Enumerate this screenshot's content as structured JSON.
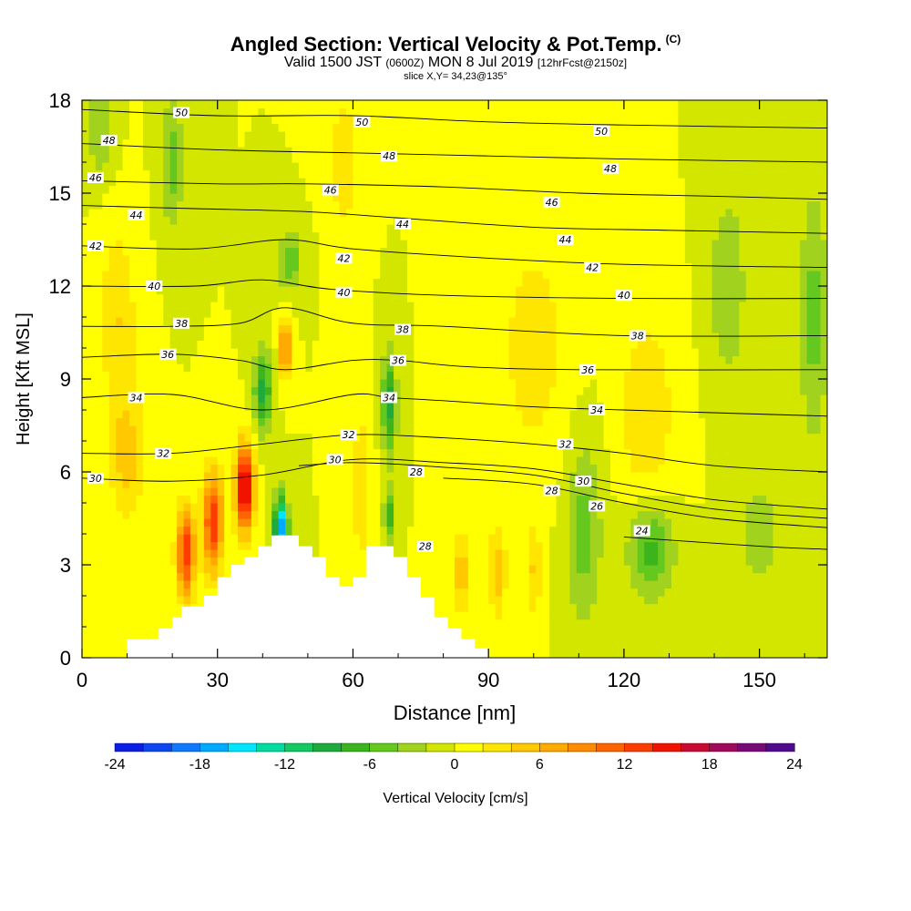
{
  "title": {
    "main": "Angled Section: Vertical Velocity & Pot.Temp.",
    "units": "(C)",
    "valid_prefix": "Valid 1500 JST",
    "valid_z": "(0600Z)",
    "valid_date": "MON 8 Jul 2019",
    "forecast": "[12hrFcst@2150z]",
    "slice": "slice X,Y= 34,23@135°"
  },
  "chart_data": {
    "type": "heatmap",
    "xlabel": "Distance [nm]",
    "ylabel": "Height [Kft MSL]",
    "xlim": [
      0,
      165
    ],
    "ylim": [
      0,
      18
    ],
    "xticks": [
      0,
      30,
      60,
      90,
      120,
      150
    ],
    "yticks": [
      0,
      3,
      6,
      9,
      12,
      15,
      18
    ],
    "colorbar": {
      "label": "Vertical Velocity [cm/s]",
      "range": [
        -24,
        24
      ],
      "ticks": [
        -24,
        -18,
        -12,
        -6,
        0,
        6,
        12,
        18,
        24
      ],
      "colors": [
        "#0a1ee6",
        "#0f46f0",
        "#0f78ff",
        "#00aaff",
        "#00e6ff",
        "#00dca0",
        "#14c864",
        "#1eaa3c",
        "#3cb41e",
        "#64c81e",
        "#a0d21e",
        "#d2e600",
        "#ffff00",
        "#ffe600",
        "#ffc800",
        "#ffaa00",
        "#ff8c00",
        "#ff6400",
        "#ff3c00",
        "#f01400",
        "#c80a32",
        "#a00a5a",
        "#780a78",
        "#500a8c"
      ]
    },
    "terrain": [
      [
        10,
        0.6
      ],
      [
        14,
        0.6
      ],
      [
        14,
        0.6
      ],
      [
        17,
        0.6
      ],
      [
        17,
        0.95
      ],
      [
        20,
        0.95
      ],
      [
        20,
        1.3
      ],
      [
        22,
        1.3
      ],
      [
        22,
        1.65
      ],
      [
        27,
        1.65
      ],
      [
        27,
        2.0
      ],
      [
        30,
        2.0
      ],
      [
        30,
        2.6
      ],
      [
        33,
        2.6
      ],
      [
        33,
        3.0
      ],
      [
        36,
        3.0
      ],
      [
        36,
        3.25
      ],
      [
        39,
        3.25
      ],
      [
        39,
        3.6
      ],
      [
        42,
        3.6
      ],
      [
        42,
        3.95
      ],
      [
        48,
        3.95
      ],
      [
        48,
        3.6
      ],
      [
        51,
        3.6
      ],
      [
        51,
        3.25
      ],
      [
        54,
        3.25
      ],
      [
        54,
        2.6
      ],
      [
        57,
        2.6
      ],
      [
        57,
        2.3
      ],
      [
        60,
        2.3
      ],
      [
        60,
        2.6
      ],
      [
        63,
        2.6
      ],
      [
        63,
        3.6
      ],
      [
        69,
        3.6
      ],
      [
        69,
        3.25
      ],
      [
        72,
        3.25
      ],
      [
        72,
        2.6
      ],
      [
        75,
        2.6
      ],
      [
        75,
        1.95
      ],
      [
        78,
        1.95
      ],
      [
        78,
        1.3
      ],
      [
        81,
        1.3
      ],
      [
        81,
        0.95
      ],
      [
        84,
        0.95
      ],
      [
        84,
        0.6
      ],
      [
        87,
        0.6
      ],
      [
        87,
        0.3
      ],
      [
        90,
        0.3
      ]
    ],
    "velocity_features": [
      {
        "x": 36,
        "y": 5.5,
        "w": 18,
        "sx": 2.0,
        "sy": 1.4
      },
      {
        "x": 29,
        "y": 4.4,
        "w": 14,
        "sx": 2.2,
        "sy": 1.6
      },
      {
        "x": 23,
        "y": 3.4,
        "w": 14,
        "sx": 2.0,
        "sy": 1.4
      },
      {
        "x": 45,
        "y": 10.0,
        "w": 12,
        "sx": 1.2,
        "sy": 0.9
      },
      {
        "x": 44,
        "y": 4.2,
        "w": -18,
        "sx": 1.5,
        "sy": 1.0
      },
      {
        "x": 40,
        "y": 8.6,
        "w": -9,
        "sx": 2.0,
        "sy": 1.3
      },
      {
        "x": 68,
        "y": 8.2,
        "w": -9,
        "sx": 1.6,
        "sy": 1.6
      },
      {
        "x": 68,
        "y": 4.6,
        "w": -7,
        "sx": 1.2,
        "sy": 0.9
      },
      {
        "x": 46,
        "y": 12.8,
        "w": -6,
        "sx": 2.5,
        "sy": 0.9
      },
      {
        "x": 126,
        "y": 3.5,
        "w": -7,
        "sx": 5.0,
        "sy": 1.5
      },
      {
        "x": 111,
        "y": 4.0,
        "w": -5,
        "sx": 4.0,
        "sy": 3.0
      },
      {
        "x": 10,
        "y": 6.5,
        "w": 5,
        "sx": 4.0,
        "sy": 2.0
      },
      {
        "x": 62,
        "y": 5.5,
        "w": 4,
        "sx": 2.0,
        "sy": 2.5
      },
      {
        "x": 84,
        "y": 2.8,
        "w": 5,
        "sx": 2.0,
        "sy": 1.5
      },
      {
        "x": 92,
        "y": 2.8,
        "w": 5,
        "sx": 2.0,
        "sy": 1.5
      },
      {
        "x": 100,
        "y": 2.8,
        "w": 4,
        "sx": 2.0,
        "sy": 1.5
      },
      {
        "x": 58,
        "y": 16,
        "w": 4,
        "sx": 3.0,
        "sy": 2.0
      },
      {
        "x": 8,
        "y": 11,
        "w": 4,
        "sx": 4.0,
        "sy": 3.0
      },
      {
        "x": 125,
        "y": 8,
        "w": 4,
        "sx": 6.0,
        "sy": 3.0
      },
      {
        "x": 100,
        "y": 10,
        "w": 3,
        "sx": 8.0,
        "sy": 4.0
      },
      {
        "x": 4,
        "y": 17,
        "w": -4,
        "sx": 3.0,
        "sy": 1.5
      },
      {
        "x": 20,
        "y": 16,
        "w": -5,
        "sx": 2.5,
        "sy": 2.0
      },
      {
        "x": 143,
        "y": 12,
        "w": -4,
        "sx": 4.0,
        "sy": 3.0
      },
      {
        "x": 162,
        "y": 11,
        "w": -5,
        "sx": 3.0,
        "sy": 4.0
      },
      {
        "x": 150,
        "y": 4,
        "w": -3,
        "sx": 5.0,
        "sy": 2.0
      }
    ],
    "theta_lines": [
      {
        "label": "24",
        "pts": [
          [
            120,
            3.9
          ],
          [
            150,
            3.6
          ],
          [
            165,
            3.5
          ]
        ]
      },
      {
        "label": "26",
        "pts": [
          [
            80,
            5.8
          ],
          [
            100,
            5.6
          ],
          [
            120,
            5.0
          ],
          [
            140,
            4.5
          ],
          [
            165,
            4.2
          ]
        ]
      },
      {
        "label": "28",
        "pts": [
          [
            48,
            6.2
          ],
          [
            60,
            6.3
          ],
          [
            75,
            6.2
          ],
          [
            100,
            5.9
          ],
          [
            120,
            5.3
          ],
          [
            140,
            4.8
          ],
          [
            165,
            4.5
          ]
        ]
      },
      {
        "label": "30",
        "pts": [
          [
            0,
            5.8
          ],
          [
            20,
            5.7
          ],
          [
            40,
            5.9
          ],
          [
            60,
            6.4
          ],
          [
            80,
            6.3
          ],
          [
            100,
            6.1
          ],
          [
            120,
            5.6
          ],
          [
            140,
            5.1
          ],
          [
            165,
            4.8
          ]
        ]
      },
      {
        "label": "32",
        "pts": [
          [
            0,
            6.6
          ],
          [
            20,
            6.6
          ],
          [
            40,
            6.9
          ],
          [
            60,
            7.2
          ],
          [
            80,
            7.1
          ],
          [
            100,
            6.9
          ],
          [
            120,
            6.6
          ],
          [
            140,
            6.2
          ],
          [
            165,
            6.0
          ]
        ]
      },
      {
        "label": "34",
        "pts": [
          [
            0,
            8.4
          ],
          [
            20,
            8.5
          ],
          [
            40,
            8.0
          ],
          [
            60,
            8.5
          ],
          [
            68,
            8.4
          ],
          [
            80,
            8.3
          ],
          [
            100,
            8.1
          ],
          [
            120,
            8.0
          ],
          [
            165,
            7.8
          ]
        ]
      },
      {
        "label": "36",
        "pts": [
          [
            0,
            9.7
          ],
          [
            20,
            9.8
          ],
          [
            35,
            9.6
          ],
          [
            45,
            9.3
          ],
          [
            60,
            9.6
          ],
          [
            70,
            9.6
          ],
          [
            85,
            9.4
          ],
          [
            110,
            9.3
          ],
          [
            165,
            9.3
          ]
        ]
      },
      {
        "label": "38",
        "pts": [
          [
            0,
            10.7
          ],
          [
            20,
            10.7
          ],
          [
            35,
            10.8
          ],
          [
            45,
            11.3
          ],
          [
            60,
            10.8
          ],
          [
            80,
            10.7
          ],
          [
            120,
            10.4
          ],
          [
            165,
            10.4
          ]
        ]
      },
      {
        "label": "40",
        "pts": [
          [
            0,
            12.0
          ],
          [
            25,
            12.0
          ],
          [
            40,
            12.2
          ],
          [
            55,
            11.9
          ],
          [
            80,
            11.7
          ],
          [
            120,
            11.6
          ],
          [
            165,
            11.6
          ]
        ]
      },
      {
        "label": "42",
        "pts": [
          [
            0,
            13.3
          ],
          [
            25,
            13.2
          ],
          [
            45,
            13.5
          ],
          [
            60,
            13.2
          ],
          [
            90,
            12.9
          ],
          [
            120,
            12.7
          ],
          [
            165,
            12.6
          ]
        ]
      },
      {
        "label": "44",
        "pts": [
          [
            0,
            14.6
          ],
          [
            25,
            14.5
          ],
          [
            50,
            14.4
          ],
          [
            70,
            14.2
          ],
          [
            100,
            13.9
          ],
          [
            130,
            13.8
          ],
          [
            165,
            13.7
          ]
        ]
      },
      {
        "label": "46",
        "pts": [
          [
            0,
            15.4
          ],
          [
            30,
            15.3
          ],
          [
            50,
            15.3
          ],
          [
            80,
            15.2
          ],
          [
            110,
            15.0
          ],
          [
            140,
            14.9
          ],
          [
            165,
            14.8
          ]
        ]
      },
      {
        "label": "48",
        "pts": [
          [
            0,
            16.6
          ],
          [
            30,
            16.4
          ],
          [
            60,
            16.3
          ],
          [
            90,
            16.2
          ],
          [
            120,
            16.1
          ],
          [
            165,
            16.0
          ]
        ]
      },
      {
        "label": "50",
        "pts": [
          [
            0,
            17.7
          ],
          [
            30,
            17.5
          ],
          [
            60,
            17.5
          ],
          [
            90,
            17.3
          ],
          [
            120,
            17.2
          ],
          [
            165,
            17.1
          ]
        ]
      }
    ],
    "theta_labels": [
      {
        "text": "50",
        "x": 22,
        "y": 17.6
      },
      {
        "text": "50",
        "x": 62,
        "y": 17.3
      },
      {
        "text": "50",
        "x": 115,
        "y": 17.0
      },
      {
        "text": "48",
        "x": 6,
        "y": 16.7
      },
      {
        "text": "48",
        "x": 68,
        "y": 16.2
      },
      {
        "text": "48",
        "x": 117,
        "y": 15.8
      },
      {
        "text": "46",
        "x": 3,
        "y": 15.5
      },
      {
        "text": "46",
        "x": 55,
        "y": 15.1
      },
      {
        "text": "46",
        "x": 104,
        "y": 14.7
      },
      {
        "text": "44",
        "x": 12,
        "y": 14.3
      },
      {
        "text": "44",
        "x": 71,
        "y": 14.0
      },
      {
        "text": "44",
        "x": 107,
        "y": 13.5
      },
      {
        "text": "42",
        "x": 3,
        "y": 13.3
      },
      {
        "text": "42",
        "x": 58,
        "y": 12.9
      },
      {
        "text": "42",
        "x": 113,
        "y": 12.6
      },
      {
        "text": "40",
        "x": 16,
        "y": 12.0
      },
      {
        "text": "40",
        "x": 58,
        "y": 11.8
      },
      {
        "text": "40",
        "x": 120,
        "y": 11.7
      },
      {
        "text": "38",
        "x": 22,
        "y": 10.8
      },
      {
        "text": "38",
        "x": 71,
        "y": 10.6
      },
      {
        "text": "38",
        "x": 123,
        "y": 10.4
      },
      {
        "text": "36",
        "x": 19,
        "y": 9.8
      },
      {
        "text": "36",
        "x": 70,
        "y": 9.6
      },
      {
        "text": "36",
        "x": 112,
        "y": 9.3
      },
      {
        "text": "34",
        "x": 12,
        "y": 8.4
      },
      {
        "text": "34",
        "x": 68,
        "y": 8.4
      },
      {
        "text": "34",
        "x": 114,
        "y": 8.0
      },
      {
        "text": "32",
        "x": 18,
        "y": 6.6
      },
      {
        "text": "32",
        "x": 59,
        "y": 7.2
      },
      {
        "text": "32",
        "x": 107,
        "y": 6.9
      },
      {
        "text": "30",
        "x": 3,
        "y": 5.8
      },
      {
        "text": "30",
        "x": 56,
        "y": 6.4
      },
      {
        "text": "30",
        "x": 111,
        "y": 5.7
      },
      {
        "text": "28",
        "x": 74,
        "y": 6.0
      },
      {
        "text": "28",
        "x": 104,
        "y": 5.4
      },
      {
        "text": "26",
        "x": 114,
        "y": 4.9
      },
      {
        "text": "24",
        "x": 124,
        "y": 4.1
      },
      {
        "text": "28",
        "x": 76,
        "y": 3.6
      }
    ]
  }
}
